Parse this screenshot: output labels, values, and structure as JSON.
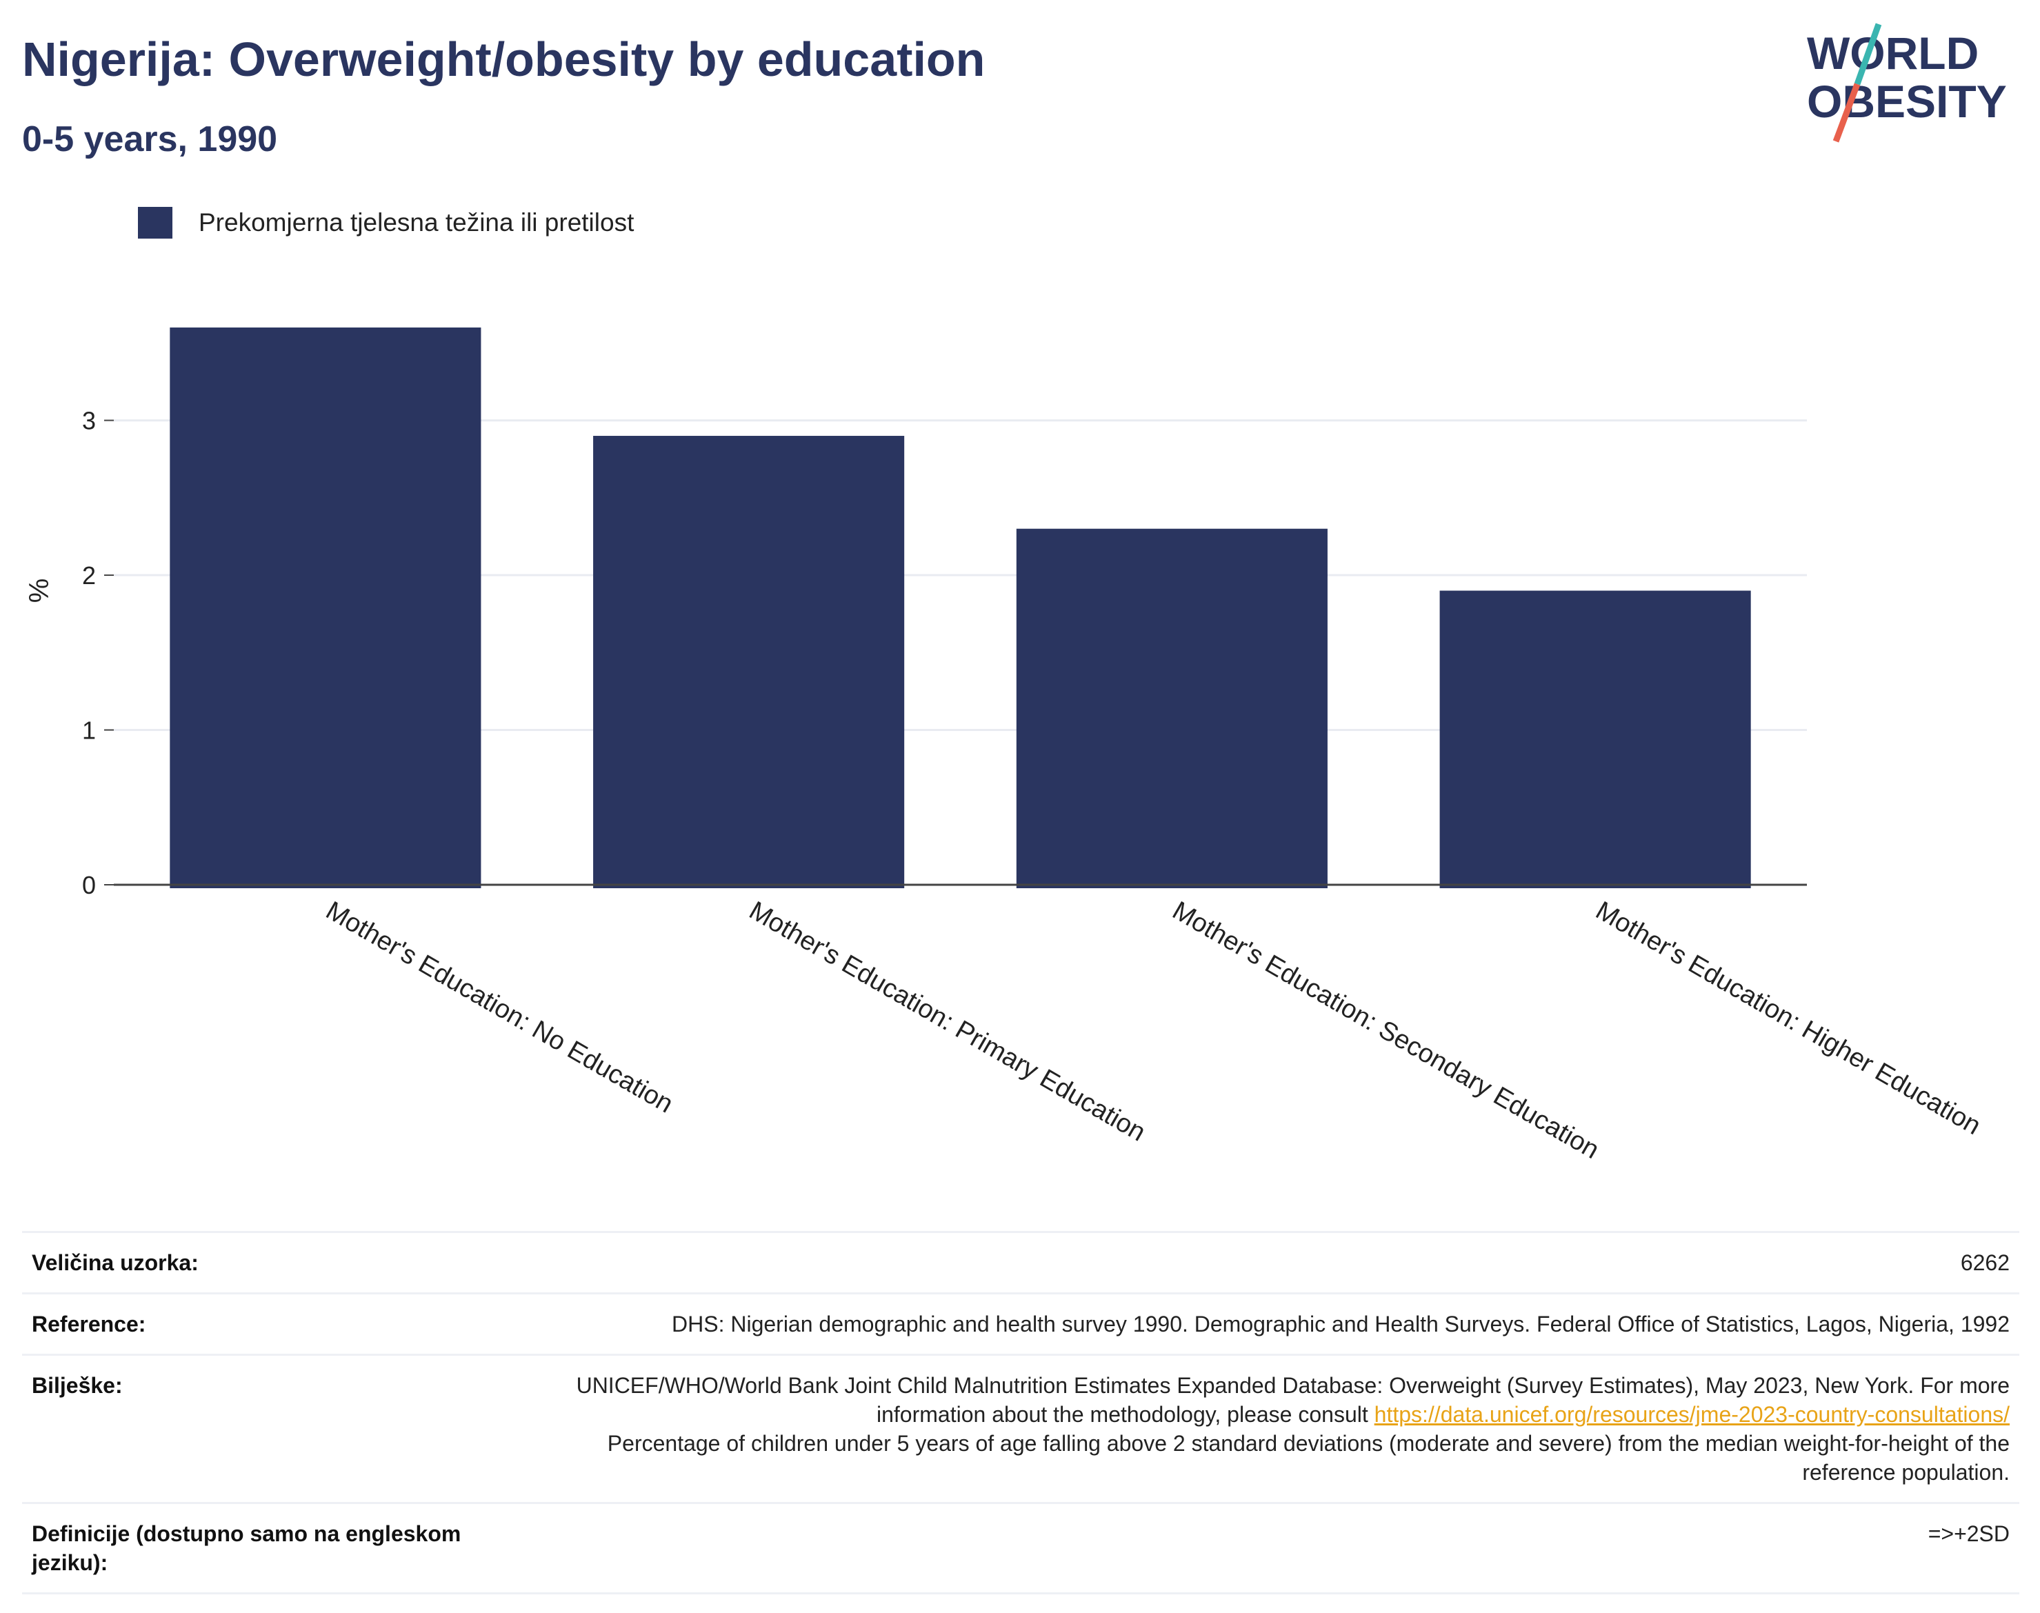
{
  "header": {
    "title": "Nigerija: Overweight/obesity by education",
    "subtitle": "0-5 years, 1990"
  },
  "logo": {
    "line1": "WORLD",
    "line2": "OBESITY",
    "colors": {
      "text": "#2a3560",
      "slash_top": "#3ab5b0",
      "slash_bottom": "#e8604c"
    }
  },
  "legend": {
    "label": "Prekomjerna tjelesna težina ili pretilost"
  },
  "chart_data": {
    "type": "bar",
    "categories": [
      "Mother's Education: No Education",
      "Mother's Education: Primary Education",
      "Mother's Education: Secondary Education",
      "Mother's Education: Higher Education"
    ],
    "series": [
      {
        "name": "Prekomjerna tjelesna težina ili pretilost",
        "values": [
          3.6,
          2.9,
          2.3,
          1.9
        ]
      }
    ],
    "title": "Nigerija: Overweight/obesity by education",
    "subtitle": "0-5 years, 1990",
    "xlabel": "",
    "ylabel": "%",
    "ylim": [
      0,
      3.8
    ],
    "yticks": [
      0,
      1,
      2,
      3
    ],
    "grid": true,
    "legend_position": "top-left",
    "bar_color": "#2a3560"
  },
  "meta": {
    "sample_size_label": "Veličina uzorka:",
    "sample_size_value": "6262",
    "reference_label": "Reference:",
    "reference_value": "DHS: Nigerian demographic and health survey 1990. Demographic and Health Surveys. Federal Office of Statistics, Lagos, Nigeria, 1992",
    "notes_label": "Bilješke:",
    "notes_text_before": "UNICEF/WHO/World Bank Joint Child Malnutrition Estimates Expanded Database: Overweight (Survey Estimates), May 2023, New York. For more information about the methodology, please consult ",
    "notes_link": "https://data.unicef.org/resources/jme-2023-country-consultations/",
    "notes_text_after": "Percentage of children under 5 years of age falling above 2 standard deviations (moderate and severe) from the median weight-for-height of the reference population.",
    "definitions_label": "Definicije (dostupno samo na engleskom jeziku):",
    "definitions_value": "=>+2SD"
  }
}
